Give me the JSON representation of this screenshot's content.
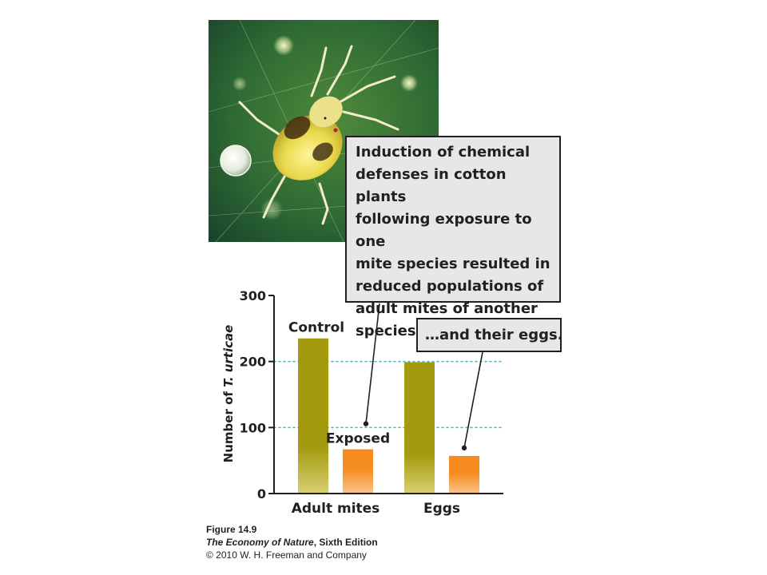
{
  "photo": {
    "subject": "mite"
  },
  "callouts": {
    "main": "Induction of chemical\ndefenses in cotton plants\nfollowing exposure to one\nmite species resulted in\nreduced populations of\nadult mites of another\nspecies…",
    "eggs": "…and their eggs."
  },
  "caption": {
    "figure": "Figure 14.9",
    "book_title": "The Economy of Nature",
    "edition": ", Sixth Edition",
    "copyright": "© 2010 W. H. Freeman and Company"
  },
  "colors": {
    "control": "#a39a0e",
    "exposed": "#f68b1f",
    "gridline": "#5fb8c6",
    "axis": "#231f20",
    "callout_fill": "#e6e7e8"
  },
  "chart_data": {
    "type": "bar",
    "ylabel_prefix": "Number of ",
    "ylabel_species": "T. urticae",
    "ylim": [
      0,
      300
    ],
    "yticks": [
      0,
      100,
      200,
      300
    ],
    "gridlines": [
      100,
      200
    ],
    "categories": [
      "Adult mites",
      "Eggs"
    ],
    "series": [
      {
        "name": "Control",
        "values": [
          235,
          199
        ]
      },
      {
        "name": "Exposed",
        "values": [
          67,
          57
        ]
      }
    ]
  }
}
